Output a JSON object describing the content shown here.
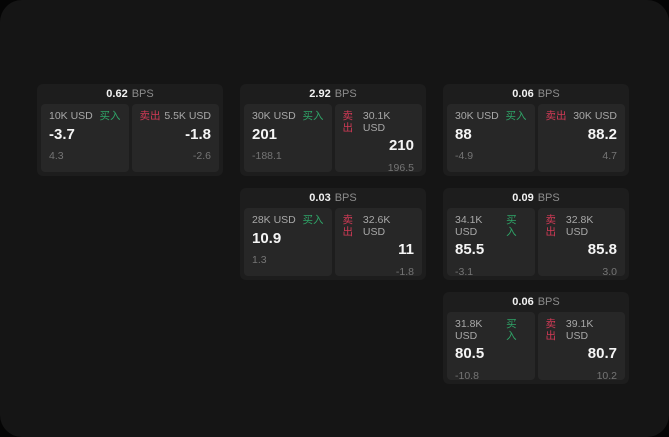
{
  "labels": {
    "bps": "BPS",
    "buy": "买入",
    "sell": "卖出"
  },
  "colors": {
    "buy_green": "#2fa568",
    "sell_red": "#d13a56",
    "card_bg": "#1d1d1d",
    "panel_bg": "#272727",
    "page_bg": "#151515"
  },
  "cards": [
    {
      "bps": "0.62",
      "buy_amount": "10K USD",
      "buy_value": "-3.7",
      "buy_sub": "4.3",
      "sell_amount": "5.5K USD",
      "sell_value": "-1.8",
      "sell_sub": "-2.6"
    },
    {
      "bps": "2.92",
      "buy_amount": "30K USD",
      "buy_value": "201",
      "buy_sub": "-188.1",
      "sell_amount": "30.1K USD",
      "sell_value": "210",
      "sell_sub": "196.5"
    },
    {
      "bps": "0.06",
      "buy_amount": "30K USD",
      "buy_value": "88",
      "buy_sub": "-4.9",
      "sell_amount": "30K USD",
      "sell_value": "88.2",
      "sell_sub": "4.7"
    },
    {
      "bps": "0.03",
      "buy_amount": "28K USD",
      "buy_value": "10.9",
      "buy_sub": "1.3",
      "sell_amount": "32.6K USD",
      "sell_value": "11",
      "sell_sub": "-1.8"
    },
    {
      "bps": "0.09",
      "buy_amount": "34.1K USD",
      "buy_value": "85.5",
      "buy_sub": "-3.1",
      "sell_amount": "32.8K USD",
      "sell_value": "85.8",
      "sell_sub": "3.0"
    },
    {
      "bps": "0.06",
      "buy_amount": "31.8K USD",
      "buy_value": "80.5",
      "buy_sub": "-10.8",
      "sell_amount": "39.1K USD",
      "sell_value": "80.7",
      "sell_sub": "10.2"
    }
  ]
}
